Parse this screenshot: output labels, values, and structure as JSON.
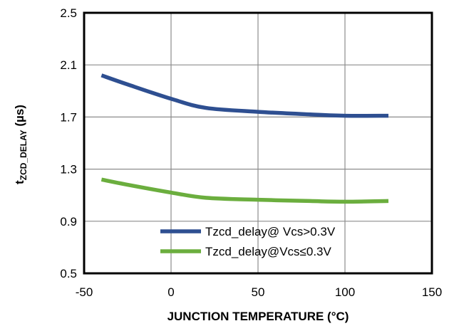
{
  "chart_data": {
    "type": "line",
    "xlabel": "JUNCTION  TEMPERATURE  (°C)",
    "ylabel": {
      "main": "t",
      "subscript": "ZCD_DELAY",
      "unit": " (µs)"
    },
    "xlim": [
      -50,
      150
    ],
    "ylim": [
      0.5,
      2.5
    ],
    "xticks": [
      -50,
      0,
      50,
      100,
      150
    ],
    "yticks": [
      0.5,
      0.9,
      1.3,
      1.7,
      2.1,
      2.5
    ],
    "xtick_labels": [
      "-50",
      "0",
      "50",
      "100",
      "150"
    ],
    "ytick_labels": [
      "0.5",
      "0.9",
      "1.3",
      "1.7",
      "2.1",
      "2.5"
    ],
    "grid": true,
    "legend_position": "bottom-center",
    "series": [
      {
        "name": "Tzcd_delay@ Vcs>0.3V",
        "color": "#2E4F91",
        "x": [
          -40,
          -25,
          0,
          20,
          50,
          80,
          100,
          125
        ],
        "y": [
          2.02,
          1.95,
          1.84,
          1.77,
          1.74,
          1.72,
          1.71,
          1.71
        ]
      },
      {
        "name": "Tzcd_delay@Vcs≤0.3V",
        "color": "#6BAE3E",
        "x": [
          -40,
          -25,
          0,
          20,
          50,
          80,
          100,
          125
        ],
        "y": [
          1.22,
          1.18,
          1.12,
          1.08,
          1.065,
          1.055,
          1.05,
          1.055
        ]
      }
    ]
  }
}
